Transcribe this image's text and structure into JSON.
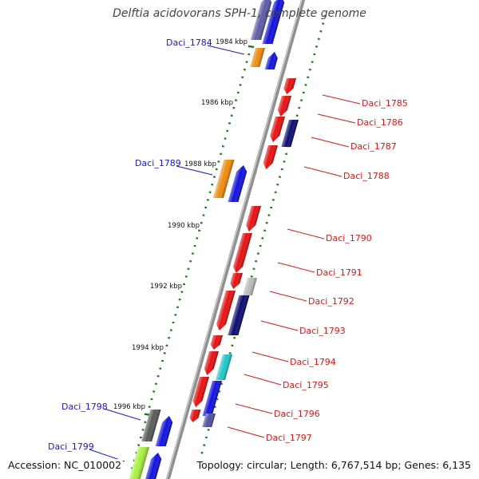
{
  "title": "Delftia acidovorans SPH-1, complete genome",
  "accession": "Accession: NC_010002",
  "topology": "Topology: circular; Length: 6,767,514 bp; Genes: 6,135",
  "colors": {
    "backbone": "#8a8a8a",
    "tick": "#1c7a1c",
    "left_label": "#1a1acc",
    "right_label": "#d61a1a"
  },
  "kbp_labels": [
    "1984 kbp",
    "1986 kbp",
    "1988 kbp",
    "1990 kbp",
    "1992 kbp",
    "1994 kbp",
    "1996 kbp"
  ],
  "left_genes": [
    {
      "name": "Daci_1784"
    },
    {
      "name": "Daci_1789"
    },
    {
      "name": "Daci_1798"
    },
    {
      "name": "Daci_1799"
    }
  ],
  "right_genes": [
    {
      "name": "Daci_1785"
    },
    {
      "name": "Daci_1786"
    },
    {
      "name": "Daci_1787"
    },
    {
      "name": "Daci_1788"
    },
    {
      "name": "Daci_1790"
    },
    {
      "name": "Daci_1791"
    },
    {
      "name": "Daci_1792"
    },
    {
      "name": "Daci_1793"
    },
    {
      "name": "Daci_1794"
    },
    {
      "name": "Daci_1795"
    },
    {
      "name": "Daci_1796"
    },
    {
      "name": "Daci_1797"
    }
  ]
}
